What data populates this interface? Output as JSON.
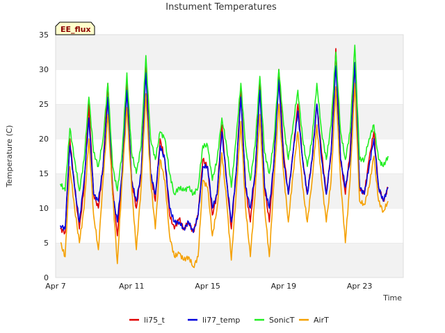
{
  "chart_data": {
    "type": "line",
    "title": "Instument Temperatures",
    "xlabel": "Time",
    "ylabel": "Temperature (C)",
    "ylim": [
      0,
      35
    ],
    "yticks": [
      0,
      5,
      10,
      15,
      20,
      25,
      30,
      35
    ],
    "xlim": [
      0,
      18.3
    ],
    "xticks": [
      {
        "label": "Apr 7",
        "x": 0
      },
      {
        "label": "Apr 11",
        "x": 4
      },
      {
        "label": "Apr 15",
        "x": 8
      },
      {
        "label": "Apr 19",
        "x": 12
      },
      {
        "label": "Apr 23",
        "x": 16
      }
    ],
    "grid": "horizontal-bands",
    "legend_position": "bottom",
    "annotation": "EE_flux",
    "day_start": 7,
    "series": [
      {
        "name": "li75_t",
        "color": "#e00000",
        "x": [
          0.25,
          0.5,
          0.75,
          1,
          1.25,
          1.5,
          1.75,
          2,
          2.25,
          2.5,
          2.75,
          3,
          3.25,
          3.5,
          3.75,
          4,
          4.25,
          4.5,
          4.75,
          5,
          5.25,
          5.5,
          5.75,
          6,
          6.25,
          6.5,
          6.75,
          7,
          7.25,
          7.5,
          7.75,
          8,
          8.25,
          8.5,
          8.75,
          9,
          9.25,
          9.5,
          9.75,
          10,
          10.25,
          10.5,
          10.75,
          11,
          11.25,
          11.5,
          11.75,
          12,
          12.25,
          12.5,
          12.75,
          13,
          13.25,
          13.5,
          13.75,
          14,
          14.25,
          14.5,
          14.75,
          15,
          15.25,
          15.5,
          15.75,
          16,
          16.25,
          16.5,
          16.75,
          17,
          17.25,
          17.5
        ],
        "values": [
          7,
          6.5,
          20,
          13,
          7,
          13,
          25,
          12,
          10,
          16,
          28,
          13,
          6,
          15,
          28,
          14,
          10,
          15,
          30.5,
          15,
          11,
          20,
          17,
          9,
          7,
          8.5,
          7,
          8,
          6.5,
          9,
          17,
          16,
          9,
          12,
          22,
          14,
          7,
          15,
          27,
          13,
          8,
          15,
          28,
          13,
          8,
          17,
          30,
          18,
          12,
          18,
          25,
          17,
          12,
          17,
          25,
          18,
          12,
          18,
          33,
          17,
          12,
          18,
          31,
          13,
          12,
          17,
          21,
          13,
          11,
          13
        ]
      },
      {
        "name": "li77_temp",
        "color": "#0000dd",
        "x": [
          0.25,
          0.5,
          0.75,
          1,
          1.25,
          1.5,
          1.75,
          2,
          2.25,
          2.5,
          2.75,
          3,
          3.25,
          3.5,
          3.75,
          4,
          4.25,
          4.5,
          4.75,
          5,
          5.25,
          5.5,
          5.75,
          6,
          6.25,
          6.5,
          6.75,
          7,
          7.25,
          7.5,
          7.75,
          8,
          8.25,
          8.5,
          8.75,
          9,
          9.25,
          9.5,
          9.75,
          10,
          10.25,
          10.5,
          10.75,
          11,
          11.25,
          11.5,
          11.75,
          12,
          12.25,
          12.5,
          12.75,
          13,
          13.25,
          13.5,
          13.75,
          14,
          14.25,
          14.5,
          14.75,
          15,
          15.25,
          15.5,
          15.75,
          16,
          16.25,
          16.5,
          16.75,
          17,
          17.25,
          17.5
        ],
        "values": [
          7.5,
          7,
          19,
          13,
          8,
          14,
          23,
          12,
          11,
          16,
          26,
          12,
          8,
          15,
          27,
          14,
          11,
          15,
          29.5,
          15,
          12,
          19,
          17,
          10,
          8,
          8,
          7,
          8,
          6.5,
          9,
          16,
          16,
          10,
          12,
          21,
          14,
          8,
          15,
          26,
          13,
          10,
          15,
          27,
          13,
          10,
          17,
          28.5,
          17,
          12,
          18,
          24,
          17,
          12,
          17,
          25,
          17,
          12,
          18,
          30.5,
          17,
          13,
          17,
          31,
          13,
          12,
          16,
          20,
          13,
          11,
          13
        ]
      },
      {
        "name": "SonicT",
        "color": "#22ee22",
        "x": [
          0.25,
          0.5,
          0.75,
          1,
          1.25,
          1.5,
          1.75,
          2,
          2.25,
          2.5,
          2.75,
          3,
          3.25,
          3.5,
          3.75,
          4,
          4.25,
          4.5,
          4.75,
          5,
          5.25,
          5.5,
          5.75,
          6,
          6.25,
          6.5,
          6.75,
          7,
          7.25,
          7.5,
          7.75,
          8,
          8.25,
          8.5,
          8.75,
          9,
          9.25,
          9.5,
          9.75,
          10,
          10.25,
          10.5,
          10.75,
          11,
          11.25,
          11.5,
          11.75,
          12,
          12.25,
          12.5,
          12.75,
          13,
          13.25,
          13.5,
          13.75,
          14,
          14.25,
          14.5,
          14.75,
          15,
          15.25,
          15.5,
          15.75,
          16,
          16.25,
          16.5,
          16.75,
          17,
          17.25,
          17.5
        ],
        "values": [
          13.5,
          12.5,
          21.5,
          17,
          12.5,
          17,
          26,
          18,
          16,
          20,
          28,
          16,
          12.5,
          18,
          29.5,
          18,
          15,
          19,
          32,
          20,
          17,
          21,
          20,
          15,
          12,
          13,
          12.5,
          13,
          12,
          13,
          19,
          19,
          14,
          17,
          23,
          19,
          13,
          20,
          28,
          19,
          14,
          19,
          29,
          18,
          15,
          20,
          30,
          22,
          17,
          22,
          27,
          20,
          16,
          20,
          28,
          21,
          17,
          22,
          32.5,
          21,
          17,
          21,
          33.5,
          17,
          17,
          20,
          22,
          17,
          16,
          17.5
        ]
      },
      {
        "name": "AirT",
        "color": "#f5a000",
        "x": [
          0.25,
          0.5,
          0.75,
          1,
          1.25,
          1.5,
          1.75,
          2,
          2.25,
          2.5,
          2.75,
          3,
          3.25,
          3.5,
          3.75,
          4,
          4.25,
          4.5,
          4.75,
          5,
          5.25,
          5.5,
          5.75,
          6,
          6.25,
          6.5,
          6.75,
          7,
          7.25,
          7.5,
          7.75,
          8,
          8.25,
          8.5,
          8.75,
          9,
          9.25,
          9.5,
          9.75,
          10,
          10.25,
          10.5,
          10.75,
          11,
          11.25,
          11.5,
          11.75,
          12,
          12.25,
          12.5,
          12.75,
          13,
          13.25,
          13.5,
          13.75,
          14,
          14.25,
          14.5,
          14.75,
          15,
          15.25,
          15.5,
          15.75,
          16,
          16.25,
          16.5,
          16.75,
          17,
          17.25,
          17.5
        ],
        "values": [
          5,
          3,
          16,
          10,
          5,
          10,
          20,
          9,
          4,
          14,
          23.5,
          12,
          2,
          14,
          24.5,
          13,
          4,
          13,
          26.5,
          14,
          7,
          17,
          14,
          6,
          3,
          3.5,
          2.5,
          3,
          1.5,
          3,
          14,
          13,
          6,
          10,
          18,
          11,
          2.5,
          12,
          22.5,
          10,
          3,
          12,
          23.5,
          10,
          3,
          14,
          25,
          15,
          8,
          15,
          21,
          13,
          8,
          14,
          22,
          14,
          8,
          14,
          27.5,
          14,
          5,
          14,
          28,
          11,
          10.5,
          13,
          17.5,
          11,
          9.5,
          11
        ]
      }
    ]
  }
}
